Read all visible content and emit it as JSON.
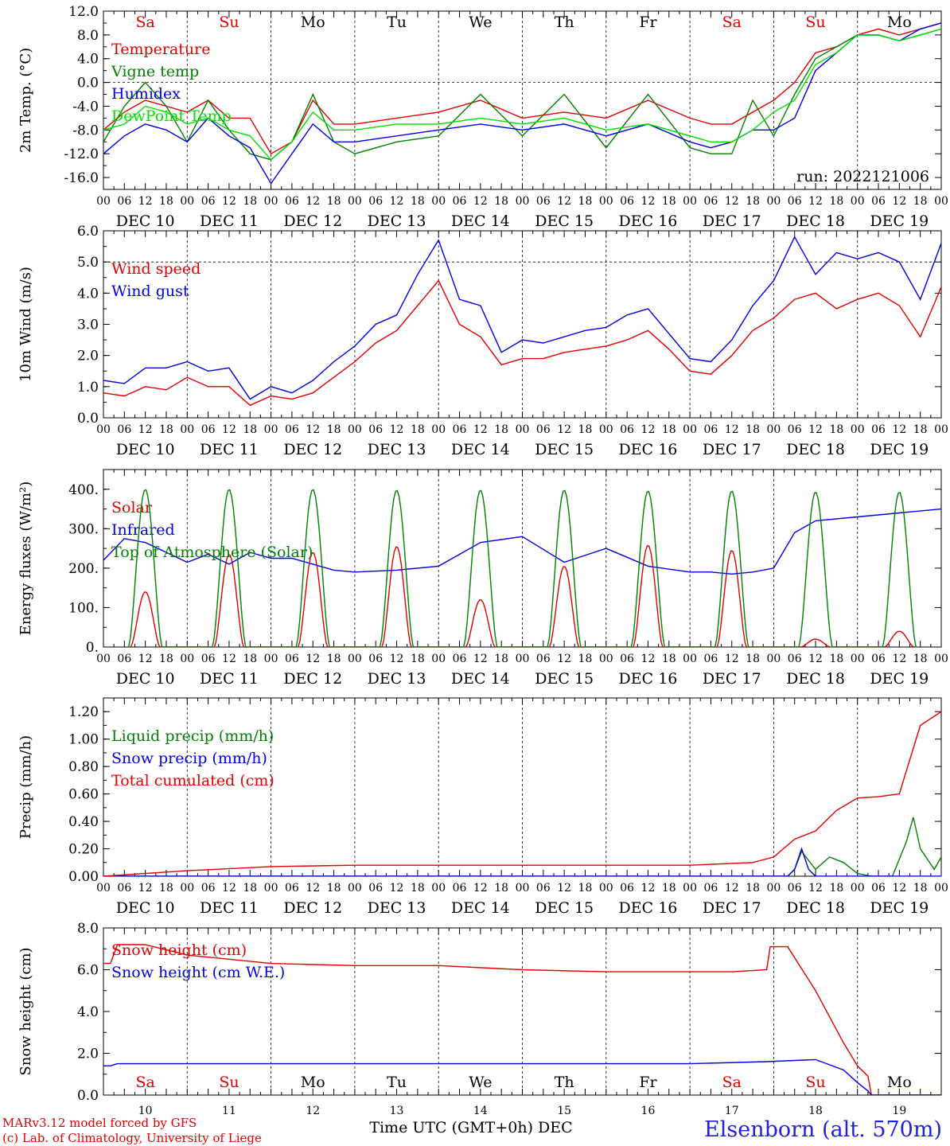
{
  "run_label": "run: 2022121006",
  "credit_line1": "MARv3.12 model forced by GFS",
  "credit_line2": "(c) Lab. of Climatology, University of Liege",
  "station": "Elsenborn (alt. 570m)",
  "bottom_axis_title": "Time UTC (GMT+0h) DEC",
  "hour_ticks": [
    "00",
    "06",
    "12",
    "18"
  ],
  "day_labels": [
    "DEC 10",
    "DEC 11",
    "DEC 12",
    "DEC 13",
    "DEC 14",
    "DEC 15",
    "DEC 16",
    "DEC 17",
    "DEC 18",
    "DEC 19"
  ],
  "day_numbers": [
    "10",
    "11",
    "12",
    "13",
    "14",
    "15",
    "16",
    "17",
    "18",
    "19"
  ],
  "weekdays": [
    "Sa",
    "Su",
    "Mo",
    "Tu",
    "We",
    "Th",
    "Fr",
    "Sa",
    "Su",
    "Mo"
  ],
  "weekend_color": "#e00000",
  "weekday_color": "#000000",
  "chart_data": [
    {
      "type": "line",
      "ylabel": "2m Temp. (°C)",
      "ylim": [
        -18,
        12
      ],
      "yticks": [
        12.0,
        8.0,
        4.0,
        0.0,
        -4.0,
        -8.0,
        -12.0,
        -16.0
      ],
      "ytick_labels": [
        "12.0",
        "8.0",
        "4.0",
        "0.0",
        "-4.0",
        "-8.0",
        "-12.0",
        "-16.0"
      ],
      "x_range_hours": [
        0,
        240
      ],
      "dashed_reference": 0,
      "legend_placement": "left",
      "series": [
        {
          "name": "Temperature",
          "color": "#e00000",
          "x": [
            0,
            6,
            12,
            18,
            24,
            30,
            36,
            42,
            48,
            54,
            60,
            66,
            72,
            84,
            96,
            108,
            120,
            132,
            144,
            156,
            168,
            174,
            180,
            186,
            192,
            198,
            204,
            210,
            216,
            222,
            228,
            234,
            240
          ],
          "y": [
            -8,
            -5,
            -3,
            -4,
            -5,
            -3,
            -6,
            -6,
            -12,
            -10,
            -3,
            -7,
            -7,
            -6,
            -5,
            -3,
            -6,
            -5,
            -6,
            -3,
            -6,
            -7,
            -7,
            -5,
            -3,
            0,
            5,
            6,
            8,
            9,
            8,
            9,
            10
          ]
        },
        {
          "name": "Vigne temp",
          "color": "#008000",
          "x": [
            0,
            6,
            12,
            18,
            24,
            30,
            36,
            42,
            48,
            54,
            60,
            66,
            72,
            84,
            96,
            108,
            120,
            132,
            144,
            156,
            168,
            174,
            180,
            186,
            192,
            198,
            204,
            210,
            216,
            222,
            228,
            234,
            240
          ],
          "y": [
            -10,
            -4,
            0,
            -4,
            -10,
            -3,
            -8,
            -12,
            -13,
            -10,
            -2,
            -10,
            -12,
            -10,
            -9,
            -2,
            -9,
            -2,
            -11,
            -2,
            -11,
            -12,
            -12,
            -3,
            -9,
            -2,
            4,
            6,
            8,
            8,
            7,
            8,
            9
          ]
        },
        {
          "name": "Humidex",
          "color": "#0000e0",
          "x": [
            0,
            6,
            12,
            18,
            24,
            30,
            36,
            42,
            48,
            54,
            60,
            66,
            72,
            84,
            96,
            108,
            120,
            132,
            144,
            156,
            168,
            174,
            180,
            186,
            192,
            198,
            204,
            210,
            216,
            222,
            228,
            234,
            240
          ],
          "y": [
            -12,
            -9,
            -7,
            -8,
            -10,
            -6,
            -9,
            -11,
            -17,
            -12,
            -7,
            -10,
            -10,
            -9,
            -8,
            -7,
            -8,
            -7,
            -9,
            -7,
            -10,
            -11,
            -10,
            -8,
            -8,
            -6,
            2,
            5,
            8,
            8,
            7,
            9,
            10
          ]
        },
        {
          "name": "DewPoint Temp",
          "color": "#00e000",
          "x": [
            0,
            6,
            12,
            18,
            24,
            30,
            36,
            42,
            48,
            54,
            60,
            66,
            72,
            84,
            96,
            108,
            120,
            132,
            144,
            156,
            168,
            174,
            180,
            186,
            192,
            198,
            204,
            210,
            216,
            222,
            228,
            234,
            240
          ],
          "y": [
            -8,
            -7,
            -4,
            -5,
            -7,
            -6,
            -8,
            -9,
            -13,
            -10,
            -5,
            -8,
            -8,
            -7,
            -7,
            -6,
            -7,
            -6,
            -8,
            -7,
            -9,
            -10,
            -10,
            -8,
            -5,
            -3,
            3,
            5,
            8,
            8,
            7,
            8,
            9
          ]
        }
      ]
    },
    {
      "type": "line",
      "ylabel": "10m Wind (m/s)",
      "ylim": [
        0,
        6
      ],
      "yticks": [
        0.0,
        1.0,
        2.0,
        3.0,
        4.0,
        5.0,
        6.0
      ],
      "ytick_labels": [
        "0.0",
        "1.0",
        "2.0",
        "3.0",
        "4.0",
        "5.0",
        "6.0"
      ],
      "x_range_hours": [
        0,
        240
      ],
      "dashed_reference": 5,
      "legend_placement": "left",
      "series": [
        {
          "name": "Wind speed",
          "color": "#e00000",
          "x": [
            0,
            6,
            12,
            18,
            24,
            30,
            36,
            42,
            48,
            54,
            60,
            66,
            72,
            78,
            84,
            90,
            96,
            102,
            108,
            114,
            120,
            126,
            132,
            138,
            144,
            150,
            156,
            162,
            168,
            174,
            180,
            186,
            192,
            198,
            204,
            210,
            216,
            222,
            228,
            234,
            240
          ],
          "y": [
            0.8,
            0.7,
            1.0,
            0.9,
            1.3,
            1.0,
            1.0,
            0.4,
            0.7,
            0.6,
            0.8,
            1.3,
            1.8,
            2.4,
            2.8,
            3.6,
            4.4,
            3.0,
            2.6,
            1.7,
            1.9,
            1.9,
            2.1,
            2.2,
            2.3,
            2.5,
            2.8,
            2.2,
            1.5,
            1.4,
            2.0,
            2.8,
            3.2,
            3.8,
            4.0,
            3.5,
            3.8,
            4.0,
            3.6,
            2.6,
            4.2
          ]
        },
        {
          "name": "Wind gust",
          "color": "#0000e0",
          "x": [
            0,
            6,
            12,
            18,
            24,
            30,
            36,
            42,
            48,
            54,
            60,
            66,
            72,
            78,
            84,
            90,
            96,
            102,
            108,
            114,
            120,
            126,
            132,
            138,
            144,
            150,
            156,
            162,
            168,
            174,
            180,
            186,
            192,
            198,
            204,
            210,
            216,
            222,
            228,
            234,
            240
          ],
          "y": [
            1.2,
            1.1,
            1.6,
            1.6,
            1.8,
            1.5,
            1.6,
            0.6,
            1.0,
            0.8,
            1.2,
            1.8,
            2.3,
            3.0,
            3.3,
            4.6,
            5.7,
            3.8,
            3.6,
            2.1,
            2.5,
            2.4,
            2.6,
            2.8,
            2.9,
            3.3,
            3.5,
            2.7,
            1.9,
            1.8,
            2.5,
            3.6,
            4.4,
            5.8,
            4.6,
            5.3,
            5.1,
            5.3,
            5.0,
            3.8,
            5.6
          ]
        }
      ]
    },
    {
      "type": "line",
      "ylabel": "Energy fluxes (W/m²)",
      "ylim": [
        0,
        450
      ],
      "yticks": [
        0,
        100,
        200,
        300,
        400
      ],
      "ytick_labels": [
        "0.",
        "100.",
        "200.",
        "300.",
        "400."
      ],
      "x_range_hours": [
        0,
        240
      ],
      "legend_placement": "left",
      "series": [
        {
          "name": "Solar",
          "color": "#e00000",
          "day_peaks": [
            140,
            235,
            240,
            255,
            120,
            205,
            258,
            245,
            20,
            40
          ]
        },
        {
          "name": "Infrared",
          "color": "#0000e0",
          "x": [
            0,
            6,
            12,
            18,
            24,
            30,
            36,
            42,
            48,
            54,
            60,
            66,
            72,
            84,
            96,
            108,
            120,
            132,
            144,
            156,
            168,
            174,
            180,
            186,
            192,
            198,
            204,
            216,
            228,
            240
          ],
          "y": [
            220,
            275,
            265,
            240,
            215,
            235,
            210,
            240,
            225,
            225,
            210,
            195,
            190,
            195,
            205,
            265,
            280,
            215,
            250,
            205,
            190,
            190,
            185,
            190,
            200,
            290,
            320,
            330,
            340,
            350
          ]
        },
        {
          "name": "Top of Atmosphere (Solar)",
          "color": "#008000",
          "day_peaks": [
            400,
            400,
            400,
            398,
            398,
            398,
            396,
            396,
            393,
            393
          ]
        }
      ]
    },
    {
      "type": "line",
      "ylabel": "Precip (mm/h)",
      "ylim": [
        0,
        1.3
      ],
      "yticks": [
        0.0,
        0.2,
        0.4,
        0.6,
        0.8,
        1.0,
        1.2
      ],
      "ytick_labels": [
        "0.00",
        "0.20",
        "0.40",
        "0.60",
        "0.80",
        "1.00",
        "1.20"
      ],
      "x_range_hours": [
        0,
        240
      ],
      "legend_placement": "left",
      "series": [
        {
          "name": "Liquid precip (mm/h)",
          "color": "#008000",
          "x": [
            0,
            196,
            198,
            200,
            204,
            208,
            212,
            216,
            220,
            226,
            230,
            232,
            234,
            238,
            240
          ],
          "y": [
            0,
            0,
            0.05,
            0.18,
            0.05,
            0.14,
            0.1,
            0.02,
            0,
            0,
            0.25,
            0.43,
            0.2,
            0.05,
            0.14
          ]
        },
        {
          "name": "Snow precip (mm/h)",
          "color": "#0000e0",
          "x": [
            0,
            196,
            198,
            200,
            202,
            204,
            240
          ],
          "y": [
            0,
            0,
            0.05,
            0.2,
            0.05,
            0,
            0
          ]
        },
        {
          "name": "Total cumulated (cm)",
          "color": "#e00000",
          "x": [
            0,
            24,
            48,
            72,
            96,
            120,
            144,
            168,
            186,
            192,
            198,
            204,
            210,
            216,
            222,
            228,
            234,
            240
          ],
          "y": [
            0,
            0.04,
            0.07,
            0.08,
            0.08,
            0.08,
            0.08,
            0.08,
            0.1,
            0.14,
            0.27,
            0.33,
            0.48,
            0.57,
            0.58,
            0.6,
            1.1,
            1.2
          ]
        }
      ]
    },
    {
      "type": "line",
      "ylabel": "Snow height (cm)",
      "ylim": [
        0,
        8
      ],
      "yticks": [
        0.0,
        2.0,
        4.0,
        6.0,
        8.0
      ],
      "ytick_labels": [
        "0.0",
        "2.0",
        "4.0",
        "6.0",
        "8.0"
      ],
      "x_range_hours": [
        0,
        240
      ],
      "legend_placement": "left",
      "series": [
        {
          "name": "Snow height (cm)",
          "color": "#e00000",
          "x": [
            0,
            2,
            4,
            12,
            24,
            48,
            72,
            96,
            120,
            144,
            168,
            180,
            190,
            191,
            196,
            204,
            212,
            216,
            219,
            220,
            240
          ],
          "y": [
            6.3,
            6.3,
            7.2,
            7.2,
            6.7,
            6.3,
            6.2,
            6.2,
            6.0,
            5.9,
            5.9,
            5.9,
            6.0,
            7.1,
            7.1,
            5.0,
            2.5,
            1.4,
            0.9,
            0.0,
            0.0
          ]
        },
        {
          "name": "Snow height (cm W.E.)",
          "color": "#0000e0",
          "x": [
            0,
            2,
            4,
            24,
            48,
            72,
            96,
            120,
            144,
            168,
            190,
            204,
            212,
            216,
            219,
            220,
            240
          ],
          "y": [
            1.4,
            1.4,
            1.5,
            1.5,
            1.5,
            1.5,
            1.5,
            1.5,
            1.5,
            1.5,
            1.6,
            1.7,
            1.2,
            0.6,
            0.2,
            0.0,
            0.0
          ]
        }
      ]
    }
  ]
}
